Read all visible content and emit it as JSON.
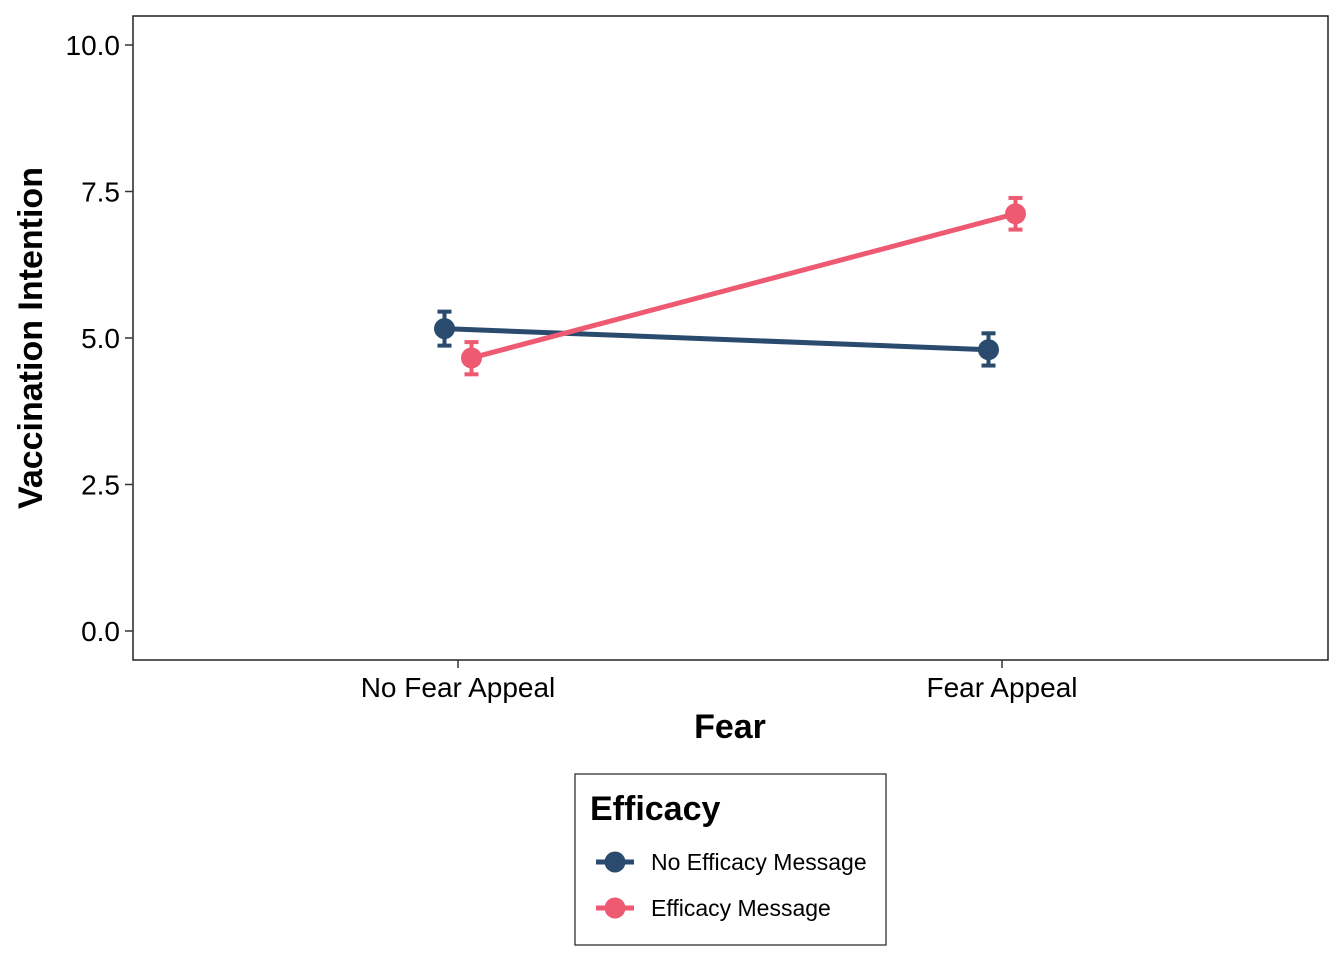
{
  "chart_data": {
    "type": "line",
    "title": "",
    "xlabel": "Fear",
    "ylabel": "Vaccination Intention",
    "categories": [
      "No Fear Appeal",
      "Fear Appeal"
    ],
    "ylim": [
      -0.5,
      10.5
    ],
    "yticks": [
      0.0,
      2.5,
      5.0,
      7.5,
      10.0
    ],
    "ytick_labels": [
      "0.0",
      "2.5",
      "5.0",
      "7.5",
      "10.0"
    ],
    "grid": false,
    "legend": {
      "title": "Efficacy",
      "position": "bottom"
    },
    "series": [
      {
        "name": "No Efficacy Message",
        "color": "#2a4a6e",
        "values": [
          5.16,
          4.8
        ],
        "error_low": [
          4.87,
          4.53
        ],
        "error_high": [
          5.45,
          5.08
        ]
      },
      {
        "name": "Efficacy Message",
        "color": "#ee5a71",
        "values": [
          4.66,
          7.12
        ],
        "error_low": [
          4.38,
          6.85
        ],
        "error_high": [
          4.93,
          7.39
        ]
      }
    ]
  }
}
